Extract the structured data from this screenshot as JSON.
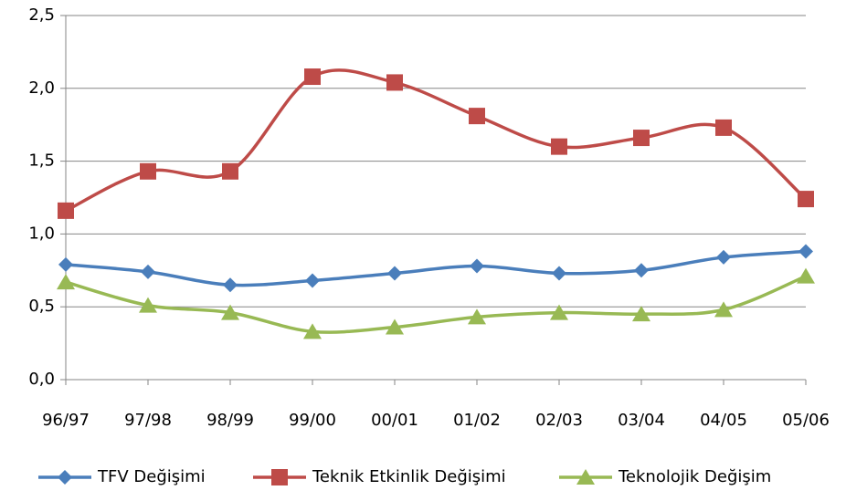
{
  "chart_data": {
    "type": "line",
    "categories": [
      "96/97",
      "97/98",
      "98/99",
      "99/00",
      "00/01",
      "01/02",
      "02/03",
      "03/04",
      "04/05",
      "05/06"
    ],
    "series": [
      {
        "name": "TFV Değişimi",
        "color": "#4a7ebb",
        "marker": "diamond",
        "values": [
          0.79,
          0.74,
          0.65,
          0.68,
          0.73,
          0.78,
          0.73,
          0.75,
          0.84,
          0.88
        ]
      },
      {
        "name": "Teknik Etkinlik Değişimi",
        "color": "#be4b48",
        "marker": "square",
        "values": [
          1.16,
          1.43,
          1.43,
          2.08,
          2.04,
          1.81,
          1.6,
          1.66,
          1.73,
          1.24
        ]
      },
      {
        "name": "Teknolojik Değişim",
        "color": "#98b954",
        "marker": "triangle",
        "values": [
          0.67,
          0.51,
          0.46,
          0.33,
          0.36,
          0.43,
          0.46,
          0.45,
          0.48,
          0.71
        ]
      }
    ],
    "ylim": [
      0,
      2.5
    ],
    "yticks": [
      {
        "value": 0,
        "label": "0,0"
      },
      {
        "value": 0.5,
        "label": "0,5"
      },
      {
        "value": 1,
        "label": "1,0"
      },
      {
        "value": 1.5,
        "label": "1,5"
      },
      {
        "value": 2,
        "label": "2,0"
      },
      {
        "value": 2.5,
        "label": "2,5"
      }
    ],
    "grid": true,
    "smooth": true,
    "legend": "bottom"
  }
}
